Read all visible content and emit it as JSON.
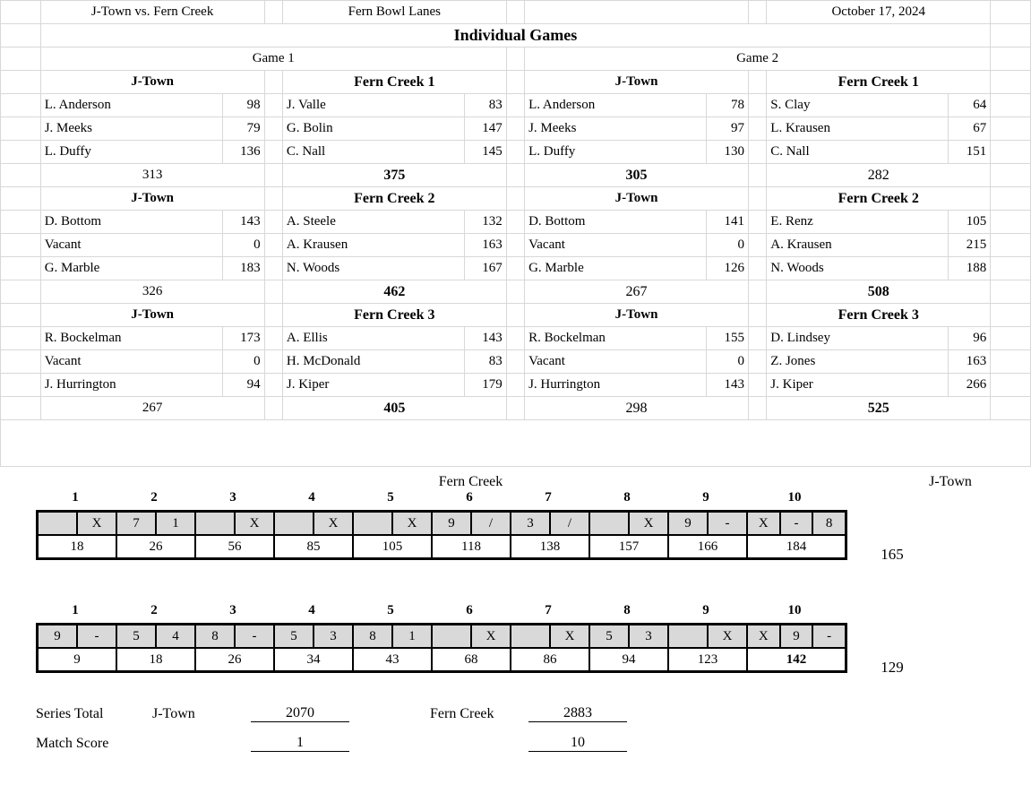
{
  "header": {
    "matchup": "J-Town vs. Fern Creek",
    "venue": "Fern Bowl Lanes",
    "date": "October 17, 2024",
    "title": "Individual Games",
    "game1": "Game 1",
    "game2": "Game 2"
  },
  "blocks": [
    {
      "g1_left_team": "J-Town",
      "g1_right_team": "Fern Creek 1",
      "g2_left_team": "J-Town",
      "g2_right_team": "Fern Creek 1",
      "g1_left": [
        [
          "L. Anderson",
          "98"
        ],
        [
          "J. Meeks",
          "79"
        ],
        [
          "L. Duffy",
          "136"
        ]
      ],
      "g1_right": [
        [
          "J. Valle",
          "83"
        ],
        [
          "G. Bolin",
          "147"
        ],
        [
          "C. Nall",
          "145"
        ]
      ],
      "g2_left": [
        [
          "L. Anderson",
          "78"
        ],
        [
          "J. Meeks",
          "97"
        ],
        [
          "L. Duffy",
          "130"
        ]
      ],
      "g2_right": [
        [
          "S. Clay",
          "64"
        ],
        [
          "L. Krausen",
          "67"
        ],
        [
          "C. Nall",
          "151"
        ]
      ],
      "g1_left_total": "313",
      "g1_right_total": "375",
      "g1_right_bold": true,
      "g2_left_total": "305",
      "g2_left_bold": true,
      "g2_right_total": "282"
    },
    {
      "g1_left_team": "J-Town",
      "g1_right_team": "Fern Creek 2",
      "g2_left_team": "J-Town",
      "g2_right_team": "Fern Creek 2",
      "g1_left": [
        [
          "D. Bottom",
          "143"
        ],
        [
          "Vacant",
          "0"
        ],
        [
          "G. Marble",
          "183"
        ]
      ],
      "g1_right": [
        [
          "A. Steele",
          "132"
        ],
        [
          "A. Krausen",
          "163"
        ],
        [
          "N. Woods",
          "167"
        ]
      ],
      "g2_left": [
        [
          "D. Bottom",
          "141"
        ],
        [
          "Vacant",
          "0"
        ],
        [
          "G. Marble",
          "126"
        ]
      ],
      "g2_right": [
        [
          "E. Renz",
          "105"
        ],
        [
          "A. Krausen",
          "215"
        ],
        [
          "N. Woods",
          "188"
        ]
      ],
      "g1_left_total": "326",
      "g1_right_total": "462",
      "g1_right_bold": true,
      "g2_left_total": "267",
      "g2_right_total": "508",
      "g2_right_bold": true
    },
    {
      "g1_left_team": "J-Town",
      "g1_right_team": "Fern Creek 3",
      "g2_left_team": "J-Town",
      "g2_right_team": "Fern Creek 3",
      "g1_left": [
        [
          "R. Bockelman",
          "173"
        ],
        [
          "Vacant",
          "0"
        ],
        [
          "J. Hurrington",
          "94"
        ]
      ],
      "g1_right": [
        [
          "A. Ellis",
          "143"
        ],
        [
          "H. McDonald",
          "83"
        ],
        [
          "J. Kiper",
          "179"
        ]
      ],
      "g2_left": [
        [
          "R. Bockelman",
          "155"
        ],
        [
          "Vacant",
          "0"
        ],
        [
          "J. Hurrington",
          "143"
        ]
      ],
      "g2_right": [
        [
          "D. Lindsey",
          "96"
        ],
        [
          "Z. Jones",
          "163"
        ],
        [
          "J. Kiper",
          "266"
        ]
      ],
      "g1_left_total": "267",
      "g1_right_total": "405",
      "g1_right_bold": true,
      "g2_left_total": "298",
      "g2_right_total": "525",
      "g2_right_bold": true
    }
  ],
  "baker_labels": {
    "left": "Fern Creek",
    "right": "J-Town"
  },
  "baker1": {
    "frames": [
      {
        "n": "1",
        "b": [
          "",
          "X"
        ],
        "c": "18"
      },
      {
        "n": "2",
        "b": [
          "7",
          "1"
        ],
        "c": "26"
      },
      {
        "n": "3",
        "b": [
          "",
          "X"
        ],
        "c": "56"
      },
      {
        "n": "4",
        "b": [
          "",
          "X"
        ],
        "c": "85"
      },
      {
        "n": "5",
        "b": [
          "",
          "X"
        ],
        "c": "105"
      },
      {
        "n": "6",
        "b": [
          "9",
          "/"
        ],
        "c": "118"
      },
      {
        "n": "7",
        "b": [
          "3",
          "/"
        ],
        "c": "138"
      },
      {
        "n": "8",
        "b": [
          "",
          "X"
        ],
        "c": "157"
      },
      {
        "n": "9",
        "b": [
          "9",
          "-"
        ],
        "c": "166"
      },
      {
        "n": "10",
        "b": [
          "X",
          "-",
          "8"
        ],
        "c": "184",
        "wide": true
      }
    ],
    "side": "165"
  },
  "baker2": {
    "frames": [
      {
        "n": "1",
        "b": [
          "9",
          "-"
        ],
        "c": "9"
      },
      {
        "n": "2",
        "b": [
          "5",
          "4"
        ],
        "c": "18"
      },
      {
        "n": "3",
        "b": [
          "8",
          "-"
        ],
        "c": "26"
      },
      {
        "n": "4",
        "b": [
          "5",
          "3"
        ],
        "c": "34"
      },
      {
        "n": "5",
        "b": [
          "8",
          "1"
        ],
        "c": "43"
      },
      {
        "n": "6",
        "b": [
          "",
          "X"
        ],
        "c": "68"
      },
      {
        "n": "7",
        "b": [
          "",
          "X"
        ],
        "c": "86"
      },
      {
        "n": "8",
        "b": [
          "5",
          "3"
        ],
        "c": "94"
      },
      {
        "n": "9",
        "b": [
          "",
          "X"
        ],
        "c": "123"
      },
      {
        "n": "10",
        "b": [
          "X",
          "9",
          "-"
        ],
        "c": "142",
        "wide": true,
        "cbold": true
      }
    ],
    "side": "129"
  },
  "summary": {
    "series_label": "Series Total",
    "match_label": "Match Score",
    "team_a": "J-Town",
    "team_a_series": "2070",
    "team_b": "Fern Creek",
    "team_b_series": "2883",
    "match_a": "1",
    "match_b": "10"
  },
  "style": {
    "grid_border": "#d8d8d8",
    "frame_fill": "#d9d9d9",
    "frame_border": "#000000",
    "background": "#ffffff",
    "text": "#000000"
  }
}
